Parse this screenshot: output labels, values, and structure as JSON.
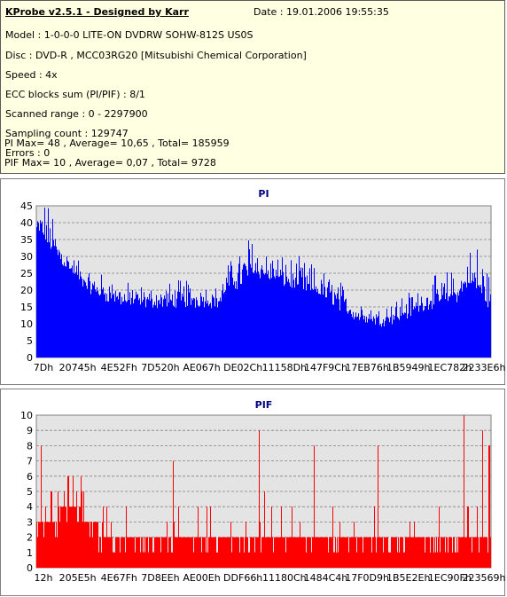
{
  "header": {
    "app_title": "KProbe v2.5.1 - Designed by Karr",
    "date": "Date : 19.01.2006 19:55:35",
    "lines": [
      "Model : 1-0-0-0 LITE-ON DVDRW SOHW-812S  US0S",
      "Disc : DVD-R , MCC03RG20 [Mitsubishi Chemical Corporation]",
      "Speed : 4x",
      "ECC blocks sum (PI/PIF) : 8/1",
      "Scanned range : 0 - 2297900",
      "Sampling count : 129747",
      "Errors : 0",
      "PI Max= 48 , Average= 10,65 , Total= 185959",
      "PIF Max= 10 , Average= 0,07 , Total= 9728"
    ]
  },
  "colors": {
    "info_background": "#ffffe1",
    "plot_background": "#e4e4e4",
    "pi_color": "#0000ff",
    "pif_color": "#ff0000",
    "title_color": "#000080"
  },
  "chart_data": [
    {
      "type": "bar",
      "title": "PI",
      "ylim": [
        0,
        45
      ],
      "yticks": [
        0,
        5,
        10,
        15,
        20,
        25,
        30,
        35,
        40,
        45
      ],
      "xtick_labels": [
        "7Dh",
        "20745h",
        "4E52Fh",
        "7D520h",
        "AE067h",
        "DE02Ch",
        "11158Dh",
        "147F9Ch",
        "17EB76h",
        "1B5949h",
        "1EC782h",
        "2233E6h"
      ],
      "grid": "horizontal dashed",
      "series": [
        {
          "color": "#0000ff",
          "x": [
            0,
            0.02,
            0.04,
            0.06,
            0.08,
            0.1,
            0.12,
            0.15,
            0.18,
            0.2,
            0.25,
            0.3,
            0.35,
            0.38,
            0.4,
            0.42,
            0.45,
            0.47,
            0.5,
            0.55,
            0.6,
            0.65,
            0.7,
            0.75,
            0.8,
            0.85,
            0.9,
            0.93,
            0.95,
            0.97,
            1.0
          ],
          "values": [
            37,
            35,
            31,
            28,
            25,
            22,
            20,
            18,
            17,
            16,
            16,
            16,
            16,
            16,
            16,
            21,
            22,
            26,
            24,
            22,
            20,
            17,
            12,
            10,
            12,
            15,
            17,
            18,
            22,
            20,
            15
          ],
          "peak_values": [
            45,
            48,
            40,
            34,
            30,
            28,
            26,
            24,
            23,
            22,
            21,
            22,
            24,
            22,
            20,
            28,
            32,
            37,
            33,
            30,
            28,
            24,
            19,
            16,
            18,
            22,
            25,
            27,
            32,
            36,
            24
          ]
        }
      ]
    },
    {
      "type": "bar",
      "title": "PIF",
      "ylim": [
        0,
        10
      ],
      "yticks": [
        0,
        1,
        2,
        3,
        4,
        5,
        6,
        7,
        8,
        9,
        10
      ],
      "xtick_labels": [
        "12h",
        "205E5h",
        "4E67Fh",
        "7D8EEh",
        "AE00Eh",
        "DDF66h",
        "11180Ch",
        "1484C4h",
        "17F0D9h",
        "1B5E2Eh",
        "1EC90Fh",
        "223569h"
      ],
      "grid": "horizontal dashed",
      "series": [
        {
          "color": "#ff0000",
          "x": [
            0,
            0.05,
            0.08,
            0.12,
            0.15,
            0.2,
            0.25,
            0.3,
            0.35,
            0.4,
            0.45,
            0.5,
            0.55,
            0.6,
            0.65,
            0.7,
            0.75,
            0.8,
            0.85,
            0.9,
            0.95,
            1.0
          ],
          "values": [
            3,
            3.5,
            4,
            3,
            2,
            1.5,
            1.5,
            1.5,
            1.5,
            2,
            2,
            2.5,
            2,
            1.5,
            1.5,
            1.5,
            1.5,
            1.5,
            1.5,
            1.5,
            1.5,
            1.5
          ],
          "peaks": [
            [
              0.01,
              8
            ],
            [
              0.3,
              7
            ],
            [
              0.49,
              9
            ],
            [
              0.61,
              8
            ],
            [
              0.75,
              8
            ],
            [
              0.94,
              10
            ],
            [
              0.98,
              9
            ],
            [
              0.995,
              8
            ]
          ]
        }
      ]
    }
  ]
}
